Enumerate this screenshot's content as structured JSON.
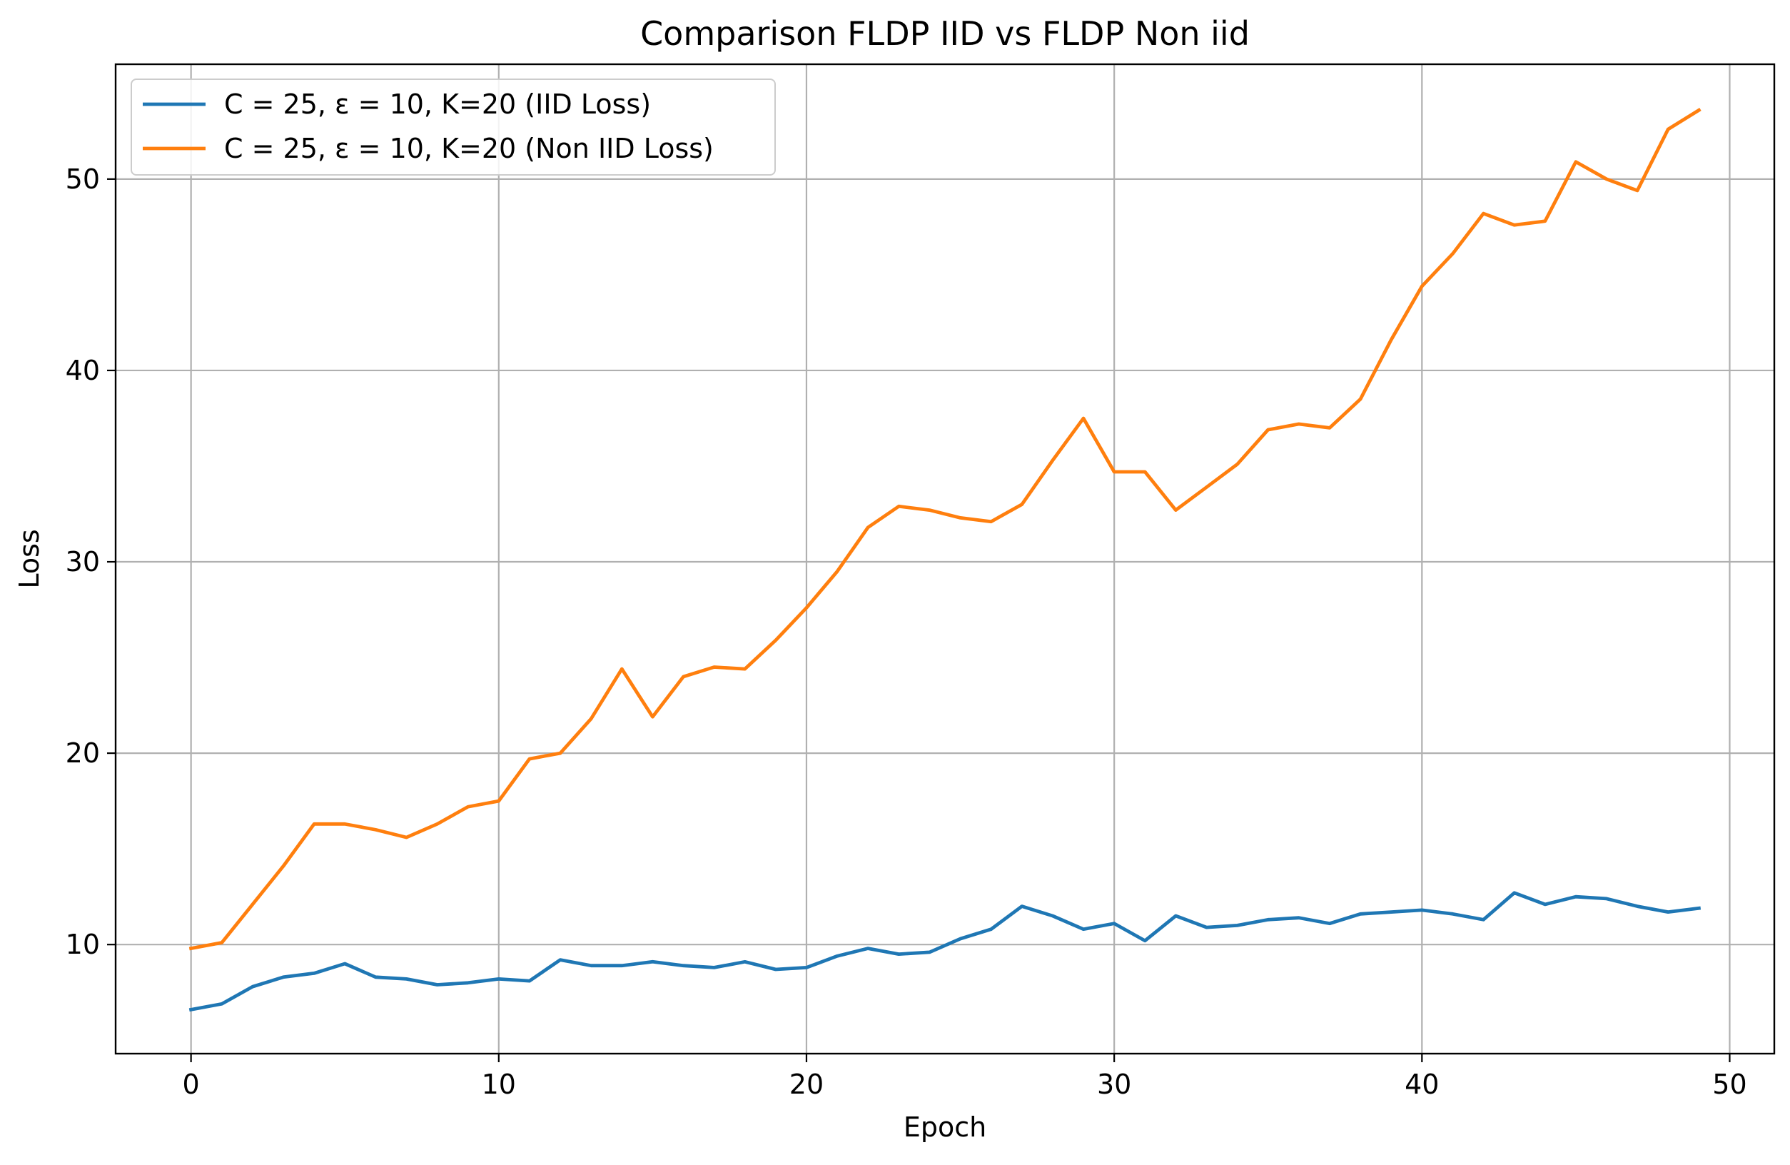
{
  "chart_data": {
    "type": "line",
    "title": "Comparison FLDP IID vs FLDP Non iid",
    "xlabel": "Epoch",
    "ylabel": "Loss",
    "xlim": [
      -2.45,
      51.45
    ],
    "ylim": [
      4.3,
      56.0
    ],
    "xticks": [
      0,
      10,
      20,
      30,
      40,
      50
    ],
    "yticks": [
      10,
      20,
      30,
      40,
      50
    ],
    "grid": true,
    "legend_position": "upper-left",
    "x": [
      0,
      1,
      2,
      3,
      4,
      5,
      6,
      7,
      8,
      9,
      10,
      11,
      12,
      13,
      14,
      15,
      16,
      17,
      18,
      19,
      20,
      21,
      22,
      23,
      24,
      25,
      26,
      27,
      28,
      29,
      30,
      31,
      32,
      33,
      34,
      35,
      36,
      37,
      38,
      39,
      40,
      41,
      42,
      43,
      44,
      45,
      46,
      47,
      48,
      49
    ],
    "series": [
      {
        "name": "C = 25, ε = 10, K=20 (IID Loss)",
        "color": "#1f77b4",
        "values": [
          6.6,
          6.9,
          7.8,
          8.3,
          8.5,
          9.0,
          8.3,
          8.2,
          7.9,
          8.0,
          8.2,
          8.1,
          9.2,
          8.9,
          8.9,
          9.1,
          8.9,
          8.8,
          9.1,
          8.7,
          8.8,
          9.4,
          9.8,
          9.5,
          9.6,
          10.3,
          10.8,
          12.0,
          11.5,
          10.8,
          11.1,
          10.2,
          11.5,
          10.9,
          11.0,
          11.3,
          11.4,
          11.1,
          11.6,
          11.7,
          11.8,
          11.6,
          11.3,
          12.7,
          12.1,
          12.5,
          12.4,
          12.0,
          11.7,
          11.9
        ]
      },
      {
        "name": "C = 25, ε = 10, K=20 (Non IID Loss)",
        "color": "#ff7f0e",
        "values": [
          9.8,
          10.1,
          12.1,
          14.1,
          16.3,
          16.3,
          16.0,
          15.6,
          16.3,
          17.2,
          17.5,
          19.7,
          20.0,
          21.8,
          24.4,
          21.9,
          24.0,
          24.5,
          24.4,
          25.9,
          27.6,
          29.5,
          31.8,
          32.9,
          32.7,
          32.3,
          32.1,
          33.0,
          35.3,
          37.5,
          34.7,
          34.7,
          32.7,
          33.9,
          35.1,
          36.9,
          37.2,
          37.0,
          38.5,
          41.6,
          44.4,
          46.1,
          48.2,
          47.6,
          47.8,
          50.9,
          50.0,
          49.4,
          52.6,
          53.6
        ]
      }
    ]
  }
}
